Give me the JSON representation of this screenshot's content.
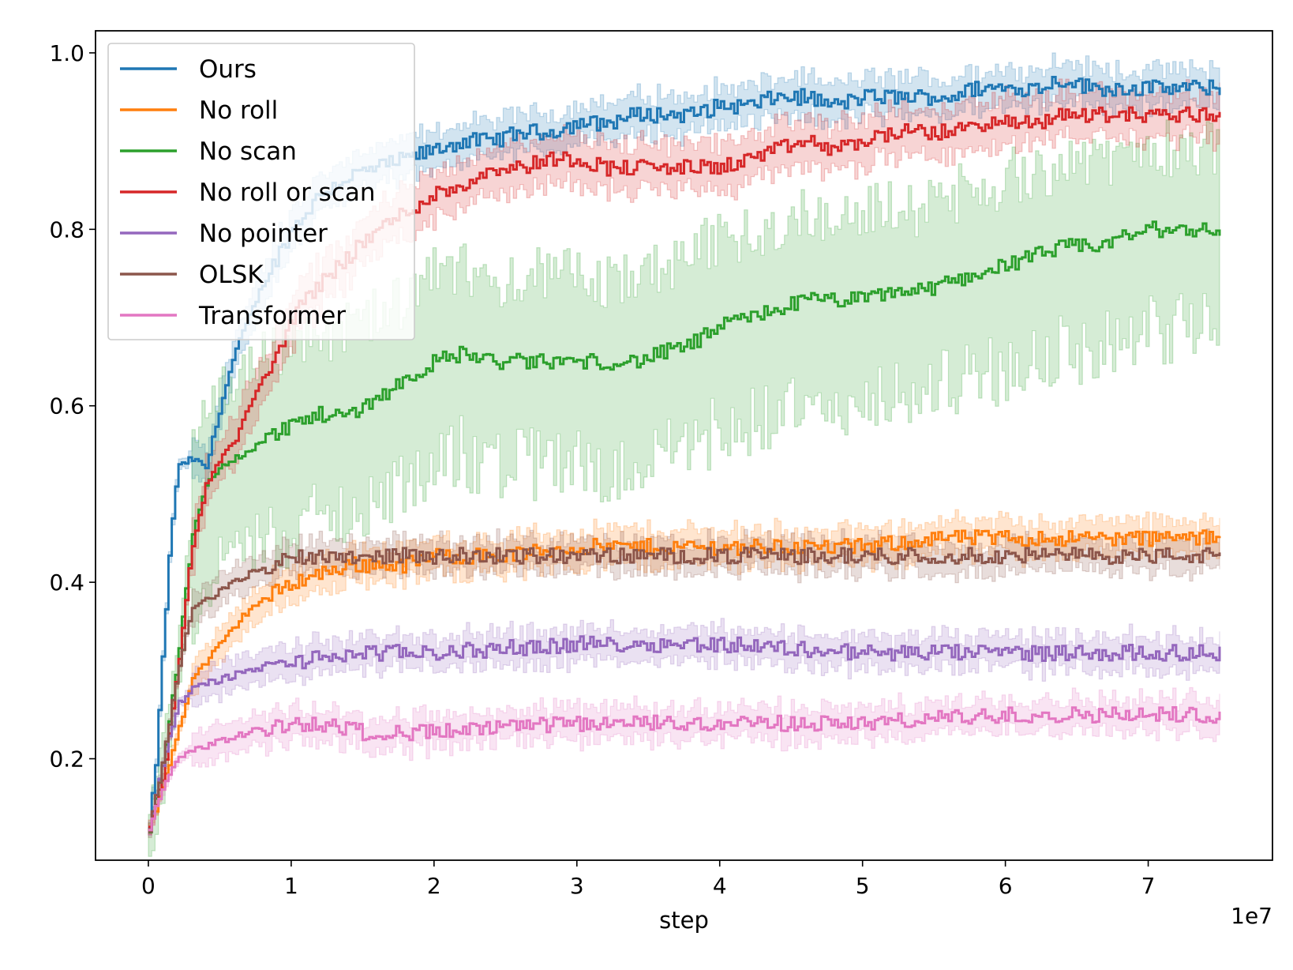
{
  "chart_data": {
    "type": "line",
    "xlabel": "step",
    "ylabel": "",
    "x_offset_label": "1e7",
    "xlim": [
      -0.37,
      7.87
    ],
    "ylim": [
      0.085,
      1.025
    ],
    "x_ticks": [
      0,
      1,
      2,
      3,
      4,
      5,
      6,
      7
    ],
    "x_tick_labels": [
      "0",
      "1",
      "2",
      "3",
      "4",
      "5",
      "6",
      "7"
    ],
    "y_ticks": [
      0.2,
      0.4,
      0.6,
      0.8,
      1.0
    ],
    "y_tick_labels": [
      "0.2",
      "0.4",
      "0.6",
      "0.8",
      "1.0"
    ],
    "grid": false,
    "legend_position": "top-left",
    "line_style": "steps",
    "series": [
      {
        "name": "Ours",
        "color": "#1f77b4",
        "band": 0.02,
        "points": [
          [
            0.0,
            0.12
          ],
          [
            0.05,
            0.2
          ],
          [
            0.1,
            0.33
          ],
          [
            0.15,
            0.45
          ],
          [
            0.2,
            0.53
          ],
          [
            0.3,
            0.54
          ],
          [
            0.4,
            0.53
          ],
          [
            0.5,
            0.6
          ],
          [
            0.6,
            0.66
          ],
          [
            0.7,
            0.7
          ],
          [
            0.8,
            0.74
          ],
          [
            1.0,
            0.8
          ],
          [
            1.2,
            0.84
          ],
          [
            1.4,
            0.86
          ],
          [
            1.6,
            0.87
          ],
          [
            1.8,
            0.88
          ],
          [
            2.0,
            0.89
          ],
          [
            2.2,
            0.9
          ],
          [
            2.4,
            0.9
          ],
          [
            2.6,
            0.91
          ],
          [
            2.8,
            0.91
          ],
          [
            3.0,
            0.92
          ],
          [
            3.2,
            0.92
          ],
          [
            3.4,
            0.93
          ],
          [
            3.6,
            0.93
          ],
          [
            3.8,
            0.93
          ],
          [
            4.0,
            0.94
          ],
          [
            4.2,
            0.94
          ],
          [
            4.4,
            0.95
          ],
          [
            4.6,
            0.95
          ],
          [
            4.8,
            0.94
          ],
          [
            5.0,
            0.95
          ],
          [
            5.2,
            0.95
          ],
          [
            5.4,
            0.95
          ],
          [
            5.6,
            0.95
          ],
          [
            5.8,
            0.96
          ],
          [
            6.0,
            0.96
          ],
          [
            6.2,
            0.96
          ],
          [
            6.4,
            0.97
          ],
          [
            6.6,
            0.96
          ],
          [
            6.8,
            0.96
          ],
          [
            7.0,
            0.96
          ],
          [
            7.2,
            0.96
          ],
          [
            7.5,
            0.96
          ]
        ]
      },
      {
        "name": "No roll",
        "color": "#ff7f0e",
        "band": 0.018,
        "points": [
          [
            0.0,
            0.12
          ],
          [
            0.1,
            0.17
          ],
          [
            0.2,
            0.23
          ],
          [
            0.3,
            0.29
          ],
          [
            0.4,
            0.31
          ],
          [
            0.5,
            0.33
          ],
          [
            0.6,
            0.35
          ],
          [
            0.7,
            0.37
          ],
          [
            0.8,
            0.38
          ],
          [
            0.9,
            0.39
          ],
          [
            1.0,
            0.4
          ],
          [
            1.2,
            0.41
          ],
          [
            1.4,
            0.42
          ],
          [
            1.6,
            0.42
          ],
          [
            1.8,
            0.42
          ],
          [
            2.0,
            0.43
          ],
          [
            2.5,
            0.43
          ],
          [
            3.0,
            0.44
          ],
          [
            3.5,
            0.44
          ],
          [
            4.0,
            0.44
          ],
          [
            4.5,
            0.44
          ],
          [
            5.0,
            0.44
          ],
          [
            5.5,
            0.45
          ],
          [
            6.0,
            0.45
          ],
          [
            6.5,
            0.45
          ],
          [
            7.0,
            0.45
          ],
          [
            7.5,
            0.45
          ]
        ]
      },
      {
        "name": "No scan",
        "color": "#2ca02c",
        "band_lo": 0.11,
        "band_hi": 0.09,
        "points": [
          [
            0.0,
            0.12
          ],
          [
            0.1,
            0.2
          ],
          [
            0.2,
            0.31
          ],
          [
            0.3,
            0.45
          ],
          [
            0.4,
            0.51
          ],
          [
            0.5,
            0.53
          ],
          [
            0.6,
            0.54
          ],
          [
            0.8,
            0.56
          ],
          [
            1.0,
            0.58
          ],
          [
            1.2,
            0.59
          ],
          [
            1.4,
            0.59
          ],
          [
            1.6,
            0.61
          ],
          [
            1.8,
            0.63
          ],
          [
            2.0,
            0.65
          ],
          [
            2.2,
            0.66
          ],
          [
            2.4,
            0.65
          ],
          [
            2.6,
            0.65
          ],
          [
            2.8,
            0.65
          ],
          [
            3.0,
            0.65
          ],
          [
            3.2,
            0.65
          ],
          [
            3.4,
            0.65
          ],
          [
            3.6,
            0.66
          ],
          [
            3.8,
            0.67
          ],
          [
            4.0,
            0.69
          ],
          [
            4.2,
            0.7
          ],
          [
            4.4,
            0.71
          ],
          [
            4.6,
            0.72
          ],
          [
            4.8,
            0.72
          ],
          [
            5.0,
            0.72
          ],
          [
            5.2,
            0.73
          ],
          [
            5.4,
            0.73
          ],
          [
            5.6,
            0.74
          ],
          [
            5.8,
            0.75
          ],
          [
            6.0,
            0.76
          ],
          [
            6.2,
            0.77
          ],
          [
            6.4,
            0.78
          ],
          [
            6.6,
            0.78
          ],
          [
            6.8,
            0.79
          ],
          [
            7.0,
            0.8
          ],
          [
            7.2,
            0.8
          ],
          [
            7.5,
            0.8
          ]
        ]
      },
      {
        "name": "No roll or scan",
        "color": "#d62728",
        "band": 0.025,
        "points": [
          [
            0.0,
            0.12
          ],
          [
            0.1,
            0.18
          ],
          [
            0.2,
            0.3
          ],
          [
            0.3,
            0.44
          ],
          [
            0.4,
            0.51
          ],
          [
            0.5,
            0.54
          ],
          [
            0.6,
            0.56
          ],
          [
            0.7,
            0.6
          ],
          [
            0.8,
            0.63
          ],
          [
            0.9,
            0.66
          ],
          [
            1.0,
            0.7
          ],
          [
            1.2,
            0.74
          ],
          [
            1.4,
            0.77
          ],
          [
            1.6,
            0.8
          ],
          [
            1.8,
            0.82
          ],
          [
            2.0,
            0.84
          ],
          [
            2.2,
            0.85
          ],
          [
            2.4,
            0.87
          ],
          [
            2.6,
            0.87
          ],
          [
            2.8,
            0.88
          ],
          [
            3.0,
            0.88
          ],
          [
            3.2,
            0.87
          ],
          [
            3.4,
            0.87
          ],
          [
            3.6,
            0.87
          ],
          [
            3.8,
            0.87
          ],
          [
            4.0,
            0.87
          ],
          [
            4.2,
            0.88
          ],
          [
            4.4,
            0.89
          ],
          [
            4.6,
            0.9
          ],
          [
            4.8,
            0.89
          ],
          [
            5.0,
            0.9
          ],
          [
            5.2,
            0.91
          ],
          [
            5.4,
            0.91
          ],
          [
            5.6,
            0.91
          ],
          [
            5.8,
            0.92
          ],
          [
            6.0,
            0.92
          ],
          [
            6.2,
            0.92
          ],
          [
            6.4,
            0.93
          ],
          [
            6.6,
            0.93
          ],
          [
            6.8,
            0.93
          ],
          [
            7.0,
            0.93
          ],
          [
            7.2,
            0.93
          ],
          [
            7.5,
            0.93
          ]
        ]
      },
      {
        "name": "No pointer",
        "color": "#9467bd",
        "band": 0.017,
        "points": [
          [
            0.0,
            0.12
          ],
          [
            0.1,
            0.2
          ],
          [
            0.2,
            0.26
          ],
          [
            0.3,
            0.28
          ],
          [
            0.5,
            0.29
          ],
          [
            0.7,
            0.3
          ],
          [
            1.0,
            0.31
          ],
          [
            1.5,
            0.32
          ],
          [
            2.0,
            0.32
          ],
          [
            3.0,
            0.33
          ],
          [
            4.0,
            0.33
          ],
          [
            5.0,
            0.32
          ],
          [
            6.0,
            0.32
          ],
          [
            7.0,
            0.32
          ],
          [
            7.5,
            0.32
          ]
        ]
      },
      {
        "name": "OLSK",
        "color": "#8c564b",
        "band": 0.016,
        "points": [
          [
            0.0,
            0.12
          ],
          [
            0.1,
            0.2
          ],
          [
            0.2,
            0.3
          ],
          [
            0.3,
            0.37
          ],
          [
            0.5,
            0.39
          ],
          [
            0.7,
            0.41
          ],
          [
            0.9,
            0.42
          ],
          [
            1.0,
            0.43
          ],
          [
            1.5,
            0.43
          ],
          [
            2.0,
            0.43
          ],
          [
            3.0,
            0.43
          ],
          [
            4.0,
            0.43
          ],
          [
            5.0,
            0.43
          ],
          [
            6.0,
            0.43
          ],
          [
            7.0,
            0.43
          ],
          [
            7.5,
            0.43
          ]
        ]
      },
      {
        "name": "Transformer",
        "color": "#e377c2",
        "band": 0.017,
        "points": [
          [
            0.0,
            0.12
          ],
          [
            0.1,
            0.17
          ],
          [
            0.2,
            0.2
          ],
          [
            0.3,
            0.21
          ],
          [
            0.5,
            0.22
          ],
          [
            0.7,
            0.23
          ],
          [
            1.0,
            0.24
          ],
          [
            1.2,
            0.24
          ],
          [
            1.5,
            0.23
          ],
          [
            2.0,
            0.23
          ],
          [
            3.0,
            0.24
          ],
          [
            4.0,
            0.24
          ],
          [
            5.0,
            0.24
          ],
          [
            6.0,
            0.25
          ],
          [
            7.0,
            0.25
          ],
          [
            7.5,
            0.25
          ]
        ]
      }
    ]
  }
}
